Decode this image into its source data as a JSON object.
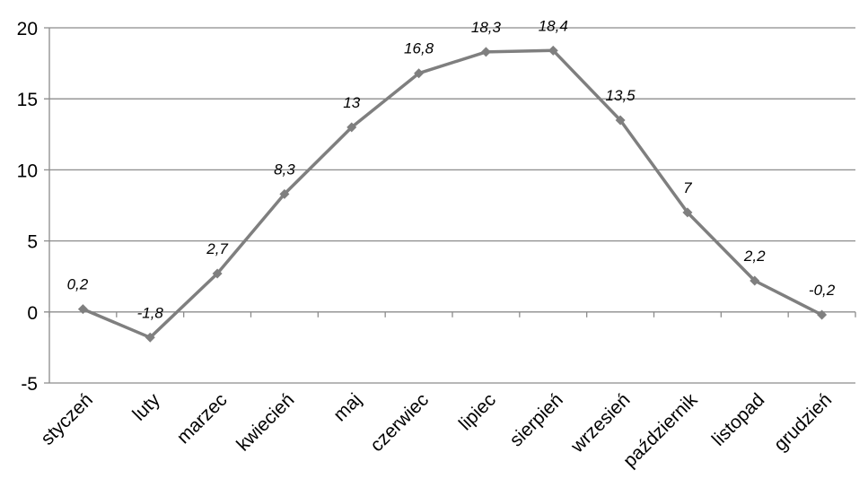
{
  "chart_data": {
    "type": "line",
    "categories": [
      "styczeń",
      "luty",
      "marzec",
      "kwiecień",
      "maj",
      "czerwiec",
      "lipiec",
      "sierpień",
      "wrzesień",
      "październik",
      "listopad",
      "grudzień"
    ],
    "series": [
      {
        "values": [
          0.2,
          -1.8,
          2.7,
          8.3,
          13,
          16.8,
          18.3,
          18.4,
          13.5,
          7,
          2.2,
          -0.2
        ],
        "data_labels": [
          "0,2",
          "-1,8",
          "2,7",
          "8,3",
          "13",
          "16,8",
          "18,3",
          "18,4",
          "13,5",
          "7",
          "2,2",
          "-0,2"
        ]
      }
    ],
    "y_ticks": [
      "20",
      "15",
      "10",
      "5",
      "0",
      "-5"
    ],
    "ylim": [
      -5,
      20
    ],
    "grid": true,
    "legend": "none",
    "colors": {
      "line": "#7f7f7f",
      "marker": "#7f7f7f",
      "grid": "#8c8c8c",
      "axis": "#8c8c8c"
    }
  }
}
